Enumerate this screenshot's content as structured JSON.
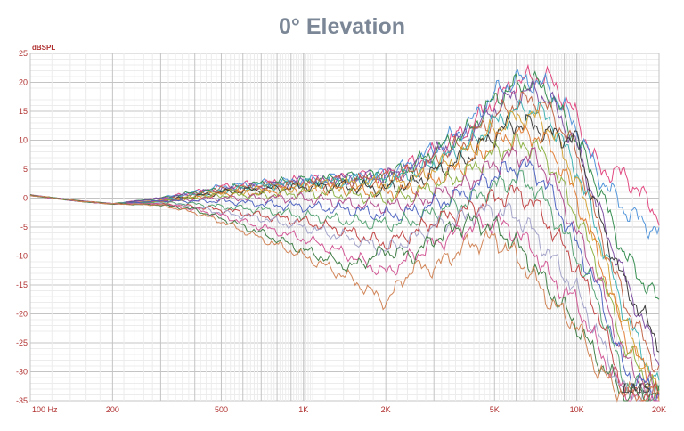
{
  "chart_data": {
    "type": "line",
    "title": "0° Elevation",
    "ylabel": "dBSPL",
    "xlabel": "",
    "x_scale": "log",
    "xlim": [
      100,
      20000
    ],
    "ylim": [
      -35,
      25
    ],
    "x_ticks": [
      {
        "value": 100,
        "label": "100  Hz"
      },
      {
        "value": 200,
        "label": "200"
      },
      {
        "value": 500,
        "label": "500"
      },
      {
        "value": 1000,
        "label": "1K"
      },
      {
        "value": 2000,
        "label": "2K"
      },
      {
        "value": 5000,
        "label": "5K"
      },
      {
        "value": 10000,
        "label": "10K"
      },
      {
        "value": 20000,
        "label": "20K"
      }
    ],
    "y_ticks": [
      25,
      20,
      15,
      10,
      5,
      0,
      -5,
      -10,
      -15,
      -20,
      -25,
      -30,
      -35
    ],
    "grid": true,
    "legend": "none",
    "watermark": "LMS",
    "x": [
      100,
      150,
      200,
      300,
      400,
      500,
      700,
      1000,
      1500,
      2000,
      2500,
      3000,
      4000,
      5000,
      6000,
      7000,
      8000,
      10000,
      12000,
      15000,
      20000
    ],
    "series": [
      {
        "color": "#e0407a",
        "values": [
          0.5,
          -0.5,
          -1,
          0,
          1,
          2,
          2.5,
          3,
          3.5,
          4,
          6,
          8,
          12,
          17,
          20,
          21,
          20.5,
          14,
          5,
          4,
          -3
        ]
      },
      {
        "color": "#4a90d9",
        "values": [
          0.5,
          -0.5,
          -1,
          0,
          1,
          2,
          2.5,
          3,
          3.5,
          4,
          6,
          8.5,
          12.5,
          18,
          20.5,
          20,
          19,
          12,
          4,
          -2,
          -6
        ]
      },
      {
        "color": "#2e8a4a",
        "values": [
          0.5,
          -0.5,
          -1,
          0,
          1,
          1.5,
          2.5,
          3,
          3.5,
          4,
          5.5,
          8,
          11.5,
          17,
          19.5,
          20,
          18,
          10,
          2,
          -10,
          -18
        ]
      },
      {
        "color": "#7a4aa0",
        "values": [
          0.5,
          -0.5,
          -1,
          0,
          0.8,
          1.5,
          2,
          3,
          3.5,
          3.8,
          5,
          7.5,
          11,
          15.5,
          18,
          18.5,
          17,
          9,
          -2,
          -14,
          -28
        ]
      },
      {
        "color": "#c06040",
        "values": [
          0.5,
          -0.5,
          -1,
          -0.5,
          0.5,
          1.5,
          2,
          2.5,
          3,
          3.5,
          4.5,
          6.5,
          10,
          14,
          16.5,
          17,
          15,
          8,
          -5,
          -18,
          -30
        ]
      },
      {
        "color": "#3ab0b0",
        "values": [
          0.5,
          -0.5,
          -1,
          -0.5,
          0.5,
          1.2,
          2,
          2.5,
          3,
          3,
          4,
          6,
          9,
          13,
          15,
          15.5,
          13.5,
          5,
          -6,
          -20,
          -33
        ]
      },
      {
        "color": "#d4a030",
        "values": [
          0.5,
          -0.5,
          -1,
          -0.5,
          0.3,
          1,
          1.5,
          2,
          2.5,
          2.5,
          3,
          5,
          8,
          12,
          14,
          14,
          12,
          3,
          -8,
          -22,
          -34
        ]
      },
      {
        "color": "#333333",
        "values": [
          0.5,
          -0.5,
          -1,
          -0.5,
          0.3,
          1,
          1.5,
          2,
          2,
          1.5,
          2.5,
          4.5,
          7,
          11,
          13,
          12.5,
          11,
          10,
          -3,
          -15,
          -25
        ]
      },
      {
        "color": "#e07a30",
        "values": [
          0.5,
          -0.5,
          -1,
          -0.5,
          0,
          0.8,
          1,
          1.5,
          1.5,
          1,
          1.5,
          3,
          6,
          9.5,
          11,
          11,
          9,
          0,
          -10,
          -24,
          -34
        ]
      },
      {
        "color": "#8ab040",
        "values": [
          0.5,
          -0.5,
          -1,
          -0.5,
          0,
          0.5,
          0.5,
          1,
          0.5,
          0,
          0.5,
          2,
          4.5,
          8,
          9.5,
          9,
          6,
          -3,
          -12,
          -26,
          -34
        ]
      },
      {
        "color": "#b04a8a",
        "values": [
          0.5,
          -0.5,
          -1,
          -0.5,
          -0.3,
          0,
          0,
          0,
          -1,
          -1.5,
          -1,
          0.5,
          2.5,
          6,
          7.5,
          7,
          4,
          -6,
          -14,
          -28,
          -34
        ]
      },
      {
        "color": "#4a60c0",
        "values": [
          0.5,
          -0.5,
          -1,
          -0.5,
          -0.5,
          -0.5,
          -1,
          -1.5,
          -2,
          -3,
          -2.5,
          -1,
          1,
          4,
          5.5,
          5,
          1,
          -8,
          -16,
          -30,
          -34
        ]
      },
      {
        "color": "#50a070",
        "values": [
          0.5,
          -0.5,
          -1,
          -0.8,
          -1,
          -1.5,
          -2,
          -3,
          -4,
          -4.5,
          -4,
          -2.5,
          -0.5,
          2,
          3.5,
          2,
          -2,
          -10,
          -18,
          -32,
          -34
        ]
      },
      {
        "color": "#c04040",
        "values": [
          0.5,
          -0.5,
          -1,
          -1,
          -1.5,
          -2,
          -3,
          -4,
          -6,
          -8,
          -6,
          -4,
          -2,
          0,
          1,
          -1,
          -5,
          -12,
          -20,
          -34,
          -34
        ]
      },
      {
        "color": "#a0a0c8",
        "values": [
          0.5,
          -0.5,
          -1,
          -1,
          -1.5,
          -2.5,
          -3.5,
          -5,
          -7,
          -9,
          -7,
          -5,
          -3,
          -2,
          -3,
          -6,
          -10,
          -16,
          -24,
          -34,
          -34
        ]
      },
      {
        "color": "#d05090",
        "values": [
          0.5,
          -0.5,
          -1,
          -1,
          -2,
          -3,
          -5,
          -7,
          -10,
          -13,
          -10,
          -8,
          -5,
          -4,
          -6,
          -9,
          -14,
          -18,
          -26,
          -34,
          -34
        ]
      },
      {
        "color": "#3a7a40",
        "values": [
          0.5,
          -0.5,
          -1,
          -1.2,
          -2,
          -3.5,
          -6,
          -9,
          -12,
          -9,
          -10,
          -7,
          -4,
          -5,
          -8,
          -12,
          -16,
          -22,
          -28,
          -34,
          -34
        ]
      },
      {
        "color": "#d08050",
        "values": [
          0.5,
          -0.5,
          -1,
          -1.2,
          -2.5,
          -4,
          -7,
          -10,
          -14,
          -18,
          -12,
          -12,
          -8,
          -7,
          -10,
          -14,
          -18,
          -22,
          -30,
          -34,
          -34
        ]
      }
    ]
  }
}
